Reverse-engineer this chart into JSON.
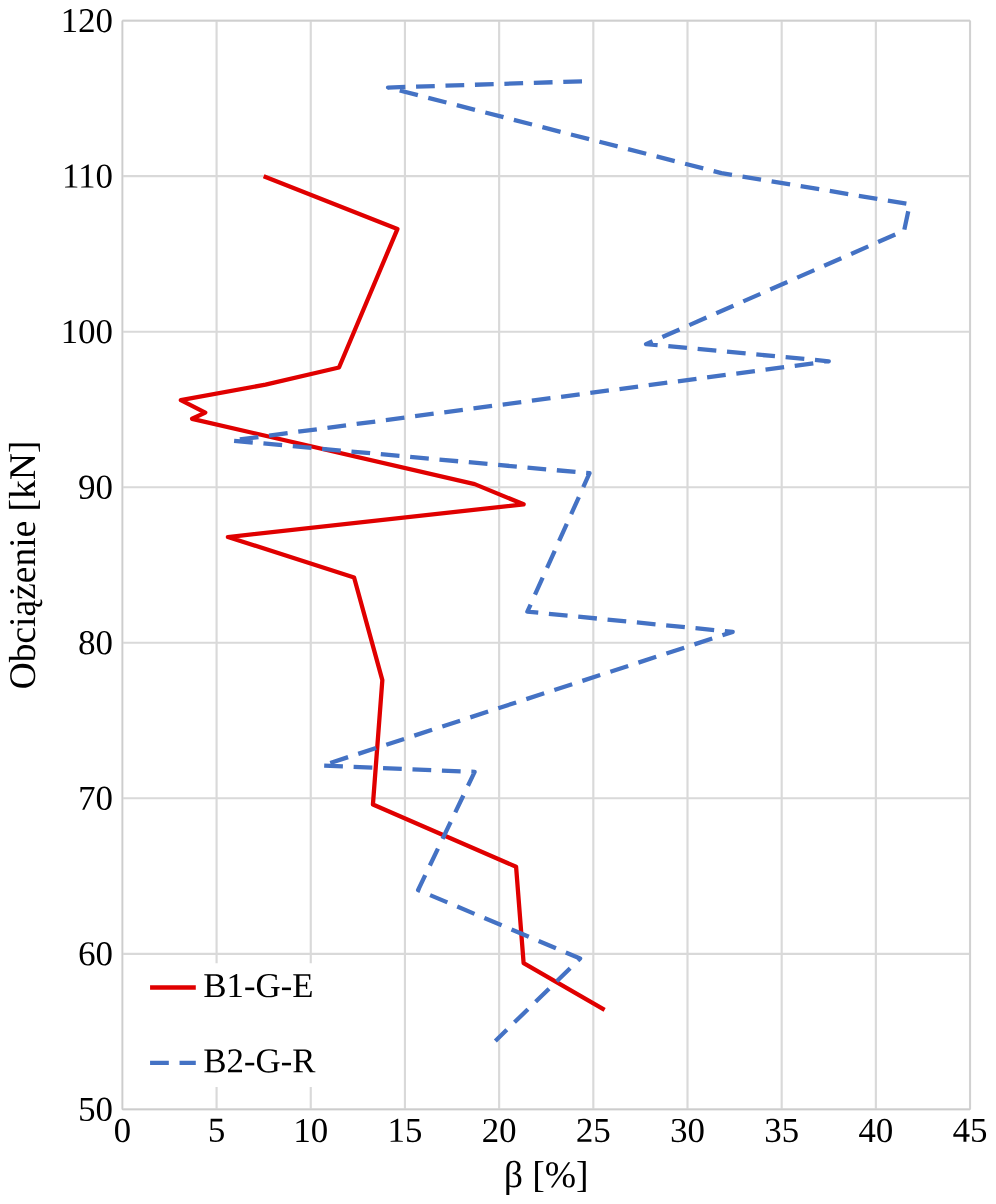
{
  "chart_data": {
    "type": "line",
    "xlabel": "β [%]",
    "ylabel": "Obciążenie [kN]",
    "xlim": [
      0,
      45
    ],
    "ylim": [
      50,
      120
    ],
    "xticks": [
      0,
      5,
      10,
      15,
      20,
      25,
      30,
      35,
      40,
      45
    ],
    "yticks": [
      50,
      60,
      70,
      80,
      90,
      100,
      110,
      120
    ],
    "grid": true,
    "legend": "bottom left",
    "series": [
      {
        "name": "B1-G-E",
        "color": "#e00000",
        "line_style": "solid",
        "x": [
          7.5,
          14.6,
          11.5,
          7.6,
          3.1,
          4.4,
          3.7,
          18.7,
          21.3,
          5.6,
          12.3,
          13.8,
          13.3,
          20.9,
          21.3,
          25.6
        ],
        "values": [
          110,
          106.6,
          97.7,
          96.6,
          95.6,
          94.8,
          94.4,
          90.2,
          88.9,
          86.8,
          84.2,
          77.6,
          69.6,
          65.6,
          59.4,
          56.4
        ]
      },
      {
        "name": "B2-G-R",
        "color": "#4472c4",
        "line_style": "dashed",
        "x": [
          24.4,
          14.1,
          31.8,
          41.8,
          41.5,
          27.8,
          37.5,
          5.8,
          24.8,
          21.5,
          32.4,
          10.6,
          18.7,
          15.7,
          24.3,
          19.8
        ],
        "values": [
          116.1,
          115.7,
          110.2,
          108.2,
          106.5,
          99.2,
          98.1,
          93.0,
          90.9,
          82.0,
          80.7,
          72.1,
          71.7,
          64.1,
          59.7,
          54.4
        ]
      }
    ]
  }
}
